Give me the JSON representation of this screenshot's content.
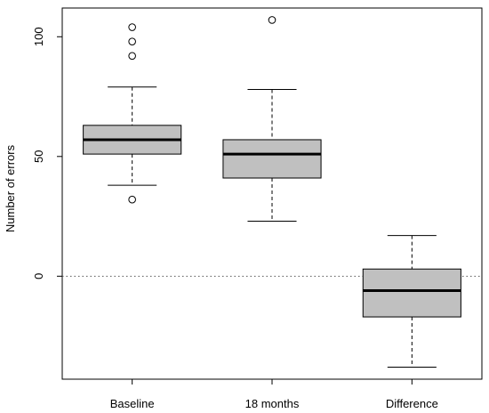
{
  "chart_data": {
    "type": "boxplot",
    "title": "",
    "xlabel": "",
    "ylabel": "Number of errors",
    "ylim": [
      -43,
      112
    ],
    "yticks": [
      0,
      50,
      100
    ],
    "grid": false,
    "reference_line": {
      "y": 0,
      "style": "dotted"
    },
    "categories": [
      "Baseline",
      "18 months",
      "Difference"
    ],
    "boxes": [
      {
        "category": "Baseline",
        "whisker_low": 38,
        "q1": 51,
        "median": 57,
        "q3": 63,
        "whisker_high": 79,
        "outliers": [
          32,
          92,
          98,
          104
        ]
      },
      {
        "category": "18 months",
        "whisker_low": 23,
        "q1": 41,
        "median": 51,
        "q3": 57,
        "whisker_high": 78,
        "outliers": [
          107
        ]
      },
      {
        "category": "Difference",
        "whisker_low": -38,
        "q1": -17,
        "median": -6,
        "q3": 3,
        "whisker_high": 17,
        "outliers": []
      }
    ],
    "box_fill": "#c0c0c0"
  }
}
